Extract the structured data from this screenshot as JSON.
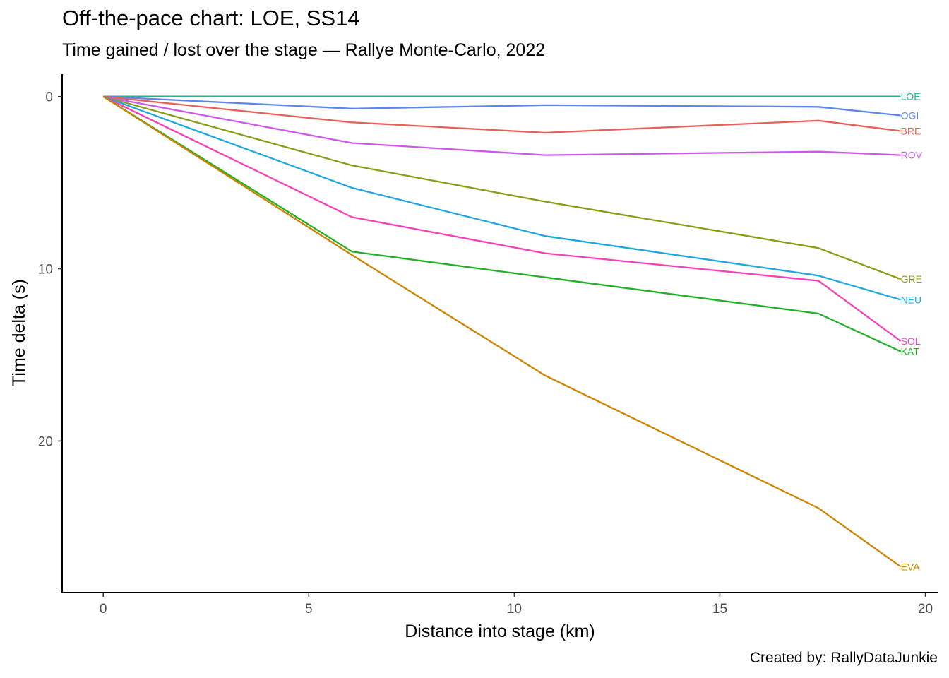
{
  "chart_data": {
    "type": "line",
    "title": "Off-the-pace chart: LOE, SS14",
    "subtitle": "Time gained / lost over the stage — Rallye Monte-Carlo, 2022",
    "caption": "Created by: RallyDataJunkie",
    "xlabel": "Distance into stage (km)",
    "ylabel": "Time delta (s)",
    "xlim": [
      -1,
      20.3
    ],
    "ylim": [
      -1.3,
      28.8
    ],
    "y_reversed": true,
    "x_ticks": [
      0,
      5,
      10,
      15,
      20
    ],
    "y_ticks": [
      0,
      10,
      20
    ],
    "grid": false,
    "legend": "none (direct end labels)",
    "x": [
      0,
      6.05,
      10.75,
      17.4,
      19.4
    ],
    "series": [
      {
        "name": "LOE",
        "color": "#1fb68e",
        "values": [
          0,
          0,
          0,
          0,
          0
        ]
      },
      {
        "name": "OGI",
        "color": "#5b86ea",
        "values": [
          0,
          0.7,
          0.5,
          0.6,
          1.1
        ]
      },
      {
        "name": "BRE",
        "color": "#e8605a",
        "values": [
          0,
          1.5,
          2.1,
          1.4,
          2.0
        ]
      },
      {
        "name": "ROV",
        "color": "#cc5ae8",
        "values": [
          0,
          2.7,
          3.4,
          3.2,
          3.4
        ]
      },
      {
        "name": "GRE",
        "color": "#8b9c16",
        "values": [
          0,
          4.0,
          6.1,
          8.8,
          10.6
        ]
      },
      {
        "name": "NEU",
        "color": "#1ea8dd",
        "values": [
          0,
          5.3,
          8.1,
          10.4,
          11.8
        ]
      },
      {
        "name": "SOL",
        "color": "#f441b8",
        "values": [
          0,
          7.0,
          9.1,
          10.7,
          14.2
        ]
      },
      {
        "name": "KAT",
        "color": "#21b027",
        "values": [
          0,
          9.0,
          10.5,
          12.6,
          14.8
        ]
      },
      {
        "name": "EVA",
        "color": "#cd8500",
        "values": [
          0,
          9.2,
          16.2,
          23.9,
          27.3
        ]
      }
    ]
  }
}
